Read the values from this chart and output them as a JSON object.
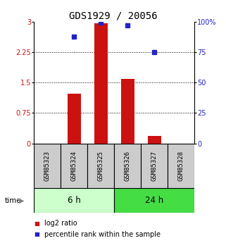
{
  "title": "GDS1929 / 20056",
  "samples": [
    "GSM85323",
    "GSM85324",
    "GSM85325",
    "GSM85326",
    "GSM85327",
    "GSM85328"
  ],
  "log2_ratio": [
    0.0,
    1.22,
    2.97,
    1.6,
    0.18,
    0.0
  ],
  "percentile_rank": [
    0.0,
    88.0,
    99.5,
    97.0,
    75.0,
    0.0
  ],
  "left_ylim": [
    0,
    3
  ],
  "right_ylim": [
    0,
    100
  ],
  "left_yticks": [
    0,
    0.75,
    1.5,
    2.25,
    3
  ],
  "right_yticks": [
    0,
    25,
    50,
    75,
    100
  ],
  "left_yticklabels": [
    "0",
    "0.75",
    "1.5",
    "2.25",
    "3"
  ],
  "right_yticklabels": [
    "0",
    "25",
    "50",
    "75",
    "100%"
  ],
  "bar_color": "#cc1111",
  "dot_color": "#2222cc",
  "group1_label": "6 h",
  "group2_label": "24 h",
  "group1_color": "#ccffcc",
  "group2_color": "#44dd44",
  "time_label": "time",
  "legend_bar_label": "log2 ratio",
  "legend_dot_label": "percentile rank within the sample",
  "title_fontsize": 10,
  "tick_fontsize": 7,
  "sample_fontsize": 6.5,
  "group_fontsize": 8.5,
  "legend_fontsize": 7,
  "bg_color": "#ffffff"
}
